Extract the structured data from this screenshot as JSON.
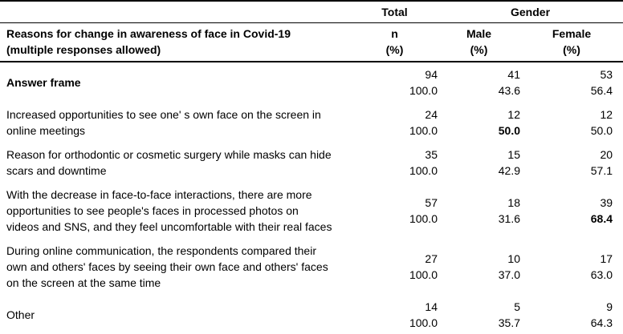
{
  "table": {
    "header": {
      "total_group": "Total",
      "gender_group": "Gender",
      "reason_col": "Reasons for change in awareness of face in Covid-19\n(multiple responses allowed)",
      "n_col": "n\n(%)",
      "male_col": "Male\n(%)",
      "female_col": "Female\n(%)"
    },
    "rows": [
      {
        "label": "Answer frame",
        "n": "94",
        "n_pct": "100.0",
        "male": "41",
        "male_pct": "43.6",
        "female": "53",
        "female_pct": "56.4"
      },
      {
        "label": "Increased opportunities to see one' s own face on the screen in\nonline meetings",
        "n": "24",
        "n_pct": "100.0",
        "male": "12",
        "male_pct": "50.0",
        "female": "12",
        "female_pct": "50.0"
      },
      {
        "label": "Reason for orthodontic or cosmetic surgery while masks can hide\nscars and downtime",
        "n": "35",
        "n_pct": "100.0",
        "male": "15",
        "male_pct": "42.9",
        "female": "20",
        "female_pct": "57.1"
      },
      {
        "label": "With the decrease in face-to-face interactions, there are more\nopportunities to see people's faces in processed photos on\nvideos and SNS, and they feel uncomfortable with their real faces",
        "n": "57",
        "n_pct": "100.0",
        "male": "18",
        "male_pct": "31.6",
        "female": "39",
        "female_pct": "68.4"
      },
      {
        "label": "During online communication, the respondents compared their\nown and others' faces by seeing their own face and others' faces\non the screen at the same time",
        "n": "27",
        "n_pct": "100.0",
        "male": "10",
        "male_pct": "37.0",
        "female": "17",
        "female_pct": "63.0"
      },
      {
        "label": "Other",
        "n": "14",
        "n_pct": "100.0",
        "male": "5",
        "male_pct": "35.7",
        "female": "9",
        "female_pct": "64.3"
      }
    ]
  }
}
